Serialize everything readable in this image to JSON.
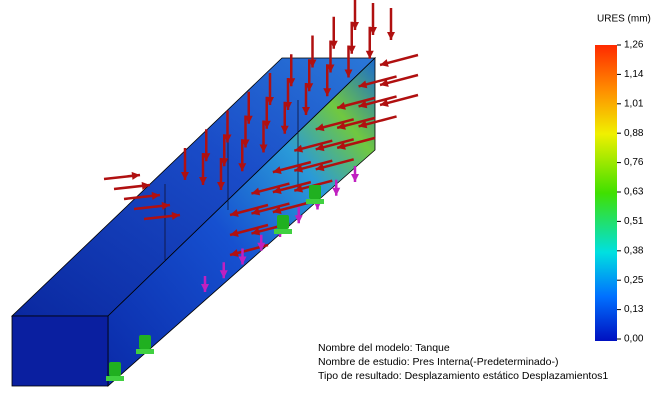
{
  "legend": {
    "title": "URES (mm)",
    "ticks": [
      "1,26",
      "1,14",
      "1,01",
      "0,88",
      "0,76",
      "0,63",
      "0,51",
      "0,38",
      "0,25",
      "0,13",
      "0,00"
    ]
  },
  "info": {
    "lines": [
      "Nombre del modelo: Tanque",
      "Nombre de estudio: Pres Interna(-Predeterminado-)",
      "Tipo de resultado: Desplazamiento estático Desplazamientos1"
    ]
  }
}
